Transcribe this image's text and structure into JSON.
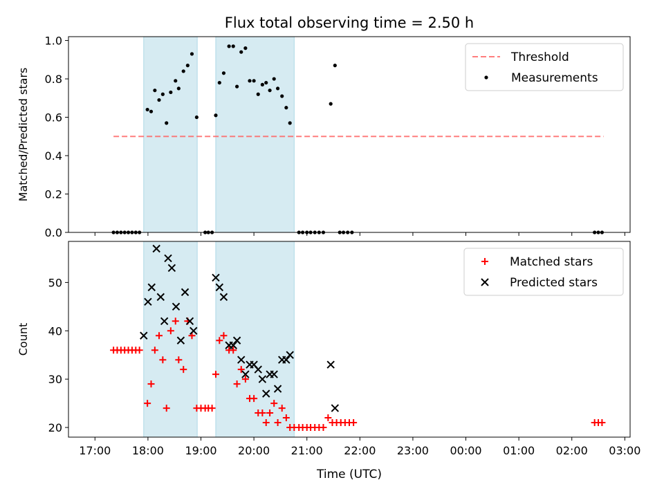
{
  "chart_data": [
    {
      "type": "scatter",
      "title": "Flux total observing time = 2.50 h",
      "xlabel": "",
      "ylabel": "Matched/Predicted stars",
      "xlim": [
        -0.5,
        10.1
      ],
      "ylim": [
        0.0,
        1.02
      ],
      "x_unit": "hours after 17:00 UTC",
      "y_ticks": [
        0.0,
        0.2,
        0.4,
        0.6,
        0.8,
        1.0
      ],
      "y_tick_labels": [
        "0.0",
        "0.2",
        "0.4",
        "0.6",
        "0.8",
        "1.0"
      ],
      "shaded_spans": [
        [
          0.92,
          1.93
        ],
        [
          2.28,
          3.76
        ]
      ],
      "shade_color": "#add8e6",
      "threshold": {
        "name": "Threshold",
        "value": 0.5,
        "x_range": [
          0.35,
          9.6
        ],
        "color": "#ff6666",
        "style": "dashed"
      },
      "series": [
        {
          "name": "Measurements",
          "marker": "dot",
          "color": "#000000",
          "points": [
            [
              0.35,
              0.0
            ],
            [
              0.42,
              0.0
            ],
            [
              0.49,
              0.0
            ],
            [
              0.56,
              0.0
            ],
            [
              0.63,
              0.0
            ],
            [
              0.7,
              0.0
            ],
            [
              0.77,
              0.0
            ],
            [
              0.84,
              0.0
            ],
            [
              0.99,
              0.64
            ],
            [
              1.06,
              0.63
            ],
            [
              1.13,
              0.74
            ],
            [
              1.21,
              0.69
            ],
            [
              1.28,
              0.72
            ],
            [
              1.35,
              0.57
            ],
            [
              1.43,
              0.73
            ],
            [
              1.52,
              0.79
            ],
            [
              1.58,
              0.75
            ],
            [
              1.67,
              0.84
            ],
            [
              1.75,
              0.87
            ],
            [
              1.83,
              0.93
            ],
            [
              1.92,
              0.6
            ],
            [
              2.08,
              0.0
            ],
            [
              2.14,
              0.0
            ],
            [
              2.21,
              0.0
            ],
            [
              2.28,
              0.61
            ],
            [
              2.35,
              0.78
            ],
            [
              2.43,
              0.83
            ],
            [
              2.53,
              0.97
            ],
            [
              2.61,
              0.97
            ],
            [
              2.68,
              0.76
            ],
            [
              2.76,
              0.94
            ],
            [
              2.84,
              0.96
            ],
            [
              2.92,
              0.79
            ],
            [
              3.0,
              0.79
            ],
            [
              3.08,
              0.72
            ],
            [
              3.16,
              0.77
            ],
            [
              3.23,
              0.78
            ],
            [
              3.3,
              0.74
            ],
            [
              3.38,
              0.8
            ],
            [
              3.45,
              0.75
            ],
            [
              3.53,
              0.71
            ],
            [
              3.61,
              0.65
            ],
            [
              3.68,
              0.57
            ],
            [
              3.85,
              0.0
            ],
            [
              3.92,
              0.0
            ],
            [
              4.0,
              0.0
            ],
            [
              4.07,
              0.0
            ],
            [
              4.15,
              0.0
            ],
            [
              4.23,
              0.0
            ],
            [
              4.31,
              0.0
            ],
            [
              4.45,
              0.67
            ],
            [
              4.53,
              0.87
            ],
            [
              4.62,
              0.0
            ],
            [
              4.69,
              0.0
            ],
            [
              4.77,
              0.0
            ],
            [
              4.85,
              0.0
            ],
            [
              9.43,
              0.0
            ],
            [
              9.5,
              0.0
            ],
            [
              9.57,
              0.0
            ]
          ]
        }
      ],
      "legend": {
        "placement": "top-right",
        "entries": [
          "Threshold",
          "Measurements"
        ]
      }
    },
    {
      "type": "scatter",
      "title": "",
      "xlabel": "Time (UTC)",
      "ylabel": "Count",
      "xlim": [
        -0.5,
        10.1
      ],
      "ylim": [
        18.0,
        58.5
      ],
      "x_unit": "hours after 17:00 UTC",
      "x_ticks": [
        0,
        1,
        2,
        3,
        4,
        5,
        6,
        7,
        8,
        9,
        10
      ],
      "x_tick_labels": [
        "17:00",
        "18:00",
        "19:00",
        "20:00",
        "21:00",
        "22:00",
        "23:00",
        "00:00",
        "01:00",
        "02:00",
        "03:00"
      ],
      "y_ticks": [
        20,
        30,
        40,
        50
      ],
      "y_tick_labels": [
        "20",
        "30",
        "40",
        "50"
      ],
      "shaded_spans": [
        [
          0.92,
          1.93
        ],
        [
          2.28,
          3.76
        ]
      ],
      "shade_color": "#add8e6",
      "series": [
        {
          "name": "Matched stars",
          "marker": "plus",
          "color": "#ff0000",
          "points": [
            [
              0.35,
              36
            ],
            [
              0.42,
              36
            ],
            [
              0.49,
              36
            ],
            [
              0.56,
              36
            ],
            [
              0.63,
              36
            ],
            [
              0.7,
              36
            ],
            [
              0.77,
              36
            ],
            [
              0.84,
              36
            ],
            [
              0.99,
              25
            ],
            [
              1.06,
              29
            ],
            [
              1.13,
              36
            ],
            [
              1.21,
              39
            ],
            [
              1.28,
              34
            ],
            [
              1.35,
              24
            ],
            [
              1.43,
              40
            ],
            [
              1.52,
              42
            ],
            [
              1.58,
              34
            ],
            [
              1.67,
              32
            ],
            [
              1.75,
              42
            ],
            [
              1.83,
              39
            ],
            [
              1.92,
              24
            ],
            [
              2.0,
              24
            ],
            [
              2.08,
              24
            ],
            [
              2.14,
              24
            ],
            [
              2.21,
              24
            ],
            [
              2.28,
              31
            ],
            [
              2.35,
              38
            ],
            [
              2.43,
              39
            ],
            [
              2.53,
              36
            ],
            [
              2.61,
              36
            ],
            [
              2.68,
              29
            ],
            [
              2.76,
              32
            ],
            [
              2.84,
              30
            ],
            [
              2.92,
              26
            ],
            [
              3.0,
              26
            ],
            [
              3.08,
              23
            ],
            [
              3.16,
              23
            ],
            [
              3.23,
              21
            ],
            [
              3.3,
              23
            ],
            [
              3.38,
              25
            ],
            [
              3.45,
              21
            ],
            [
              3.53,
              24
            ],
            [
              3.61,
              22
            ],
            [
              3.68,
              20
            ],
            [
              3.76,
              20
            ],
            [
              3.85,
              20
            ],
            [
              3.92,
              20
            ],
            [
              4.0,
              20
            ],
            [
              4.07,
              20
            ],
            [
              4.15,
              20
            ],
            [
              4.23,
              20
            ],
            [
              4.31,
              20
            ],
            [
              4.4,
              22
            ],
            [
              4.48,
              21
            ],
            [
              4.56,
              21
            ],
            [
              4.64,
              21
            ],
            [
              4.72,
              21
            ],
            [
              4.8,
              21
            ],
            [
              4.88,
              21
            ],
            [
              9.43,
              21
            ],
            [
              9.5,
              21
            ],
            [
              9.57,
              21
            ]
          ]
        },
        {
          "name": "Predicted stars",
          "marker": "x",
          "color": "#000000",
          "points": [
            [
              0.92,
              39
            ],
            [
              1.0,
              46
            ],
            [
              1.07,
              49
            ],
            [
              1.16,
              57
            ],
            [
              1.24,
              47
            ],
            [
              1.31,
              42
            ],
            [
              1.38,
              55
            ],
            [
              1.45,
              53
            ],
            [
              1.53,
              45
            ],
            [
              1.62,
              38
            ],
            [
              1.7,
              48
            ],
            [
              1.79,
              42
            ],
            [
              1.86,
              40
            ],
            [
              2.28,
              51
            ],
            [
              2.35,
              49
            ],
            [
              2.43,
              47
            ],
            [
              2.53,
              37
            ],
            [
              2.61,
              37
            ],
            [
              2.68,
              38
            ],
            [
              2.76,
              34
            ],
            [
              2.84,
              31
            ],
            [
              2.92,
              33
            ],
            [
              3.0,
              33
            ],
            [
              3.08,
              32
            ],
            [
              3.16,
              30
            ],
            [
              3.23,
              27
            ],
            [
              3.3,
              31
            ],
            [
              3.38,
              31
            ],
            [
              3.45,
              28
            ],
            [
              3.53,
              34
            ],
            [
              3.61,
              34
            ],
            [
              3.68,
              35
            ],
            [
              4.45,
              33
            ],
            [
              4.53,
              24
            ]
          ]
        }
      ],
      "legend": {
        "placement": "top-right",
        "entries": [
          "Matched stars",
          "Predicted stars"
        ]
      }
    }
  ]
}
